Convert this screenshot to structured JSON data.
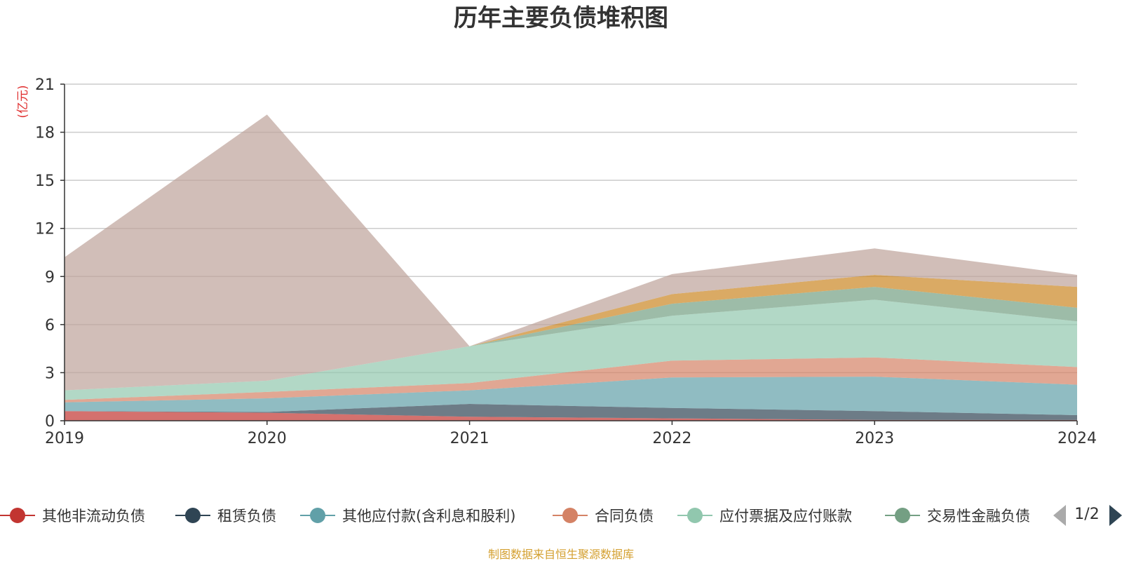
{
  "chart_data": {
    "type": "area",
    "stacked": true,
    "title": "历年主要负债堆积图",
    "unit_label": "(亿元)",
    "x": [
      "2019",
      "2020",
      "2021",
      "2022",
      "2023",
      "2024"
    ],
    "ylim": [
      0,
      21
    ],
    "yticks": [
      "0",
      "3",
      "6",
      "9",
      "12",
      "15",
      "18",
      "21"
    ],
    "grid": true,
    "series": [
      {
        "name": "其他非流动负债",
        "color": "#c23531",
        "values": [
          0.6,
          0.5,
          0.25,
          0.15,
          0.05,
          0.05
        ]
      },
      {
        "name": "租赁负债",
        "color": "#2f4554",
        "values": [
          0.0,
          0.05,
          0.8,
          0.65,
          0.55,
          0.3
        ]
      },
      {
        "name": "其他应付款(含利息和股利)",
        "color": "#61a0a8",
        "values": [
          0.55,
          0.85,
          0.85,
          1.9,
          2.15,
          1.9
        ]
      },
      {
        "name": "合同负债",
        "color": "#d48265",
        "values": [
          0.15,
          0.4,
          0.45,
          1.05,
          1.2,
          1.1
        ]
      },
      {
        "name": "应付票据及应付账款",
        "color": "#91c7ae",
        "values": [
          0.6,
          0.7,
          2.3,
          2.8,
          3.6,
          2.85
        ]
      },
      {
        "name": "交易性金融负债",
        "color": "#749f83",
        "values": [
          0.0,
          0.0,
          0.0,
          0.75,
          0.8,
          0.85
        ]
      },
      {
        "name": "",
        "color": "#ca8622",
        "values": [
          0.0,
          0.0,
          0.0,
          0.6,
          0.75,
          1.3
        ]
      },
      {
        "name": "",
        "color": "#bda29a",
        "values": [
          8.3,
          16.6,
          0.0,
          1.25,
          1.65,
          0.75
        ]
      }
    ],
    "legend_position": "bottom",
    "legend_page": "1/2"
  },
  "source_text": "制图数据来自恒生聚源数据库"
}
